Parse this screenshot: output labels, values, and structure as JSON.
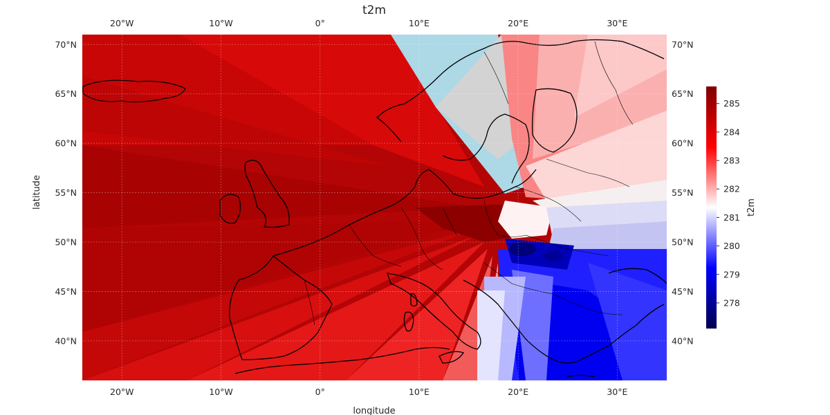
{
  "plot": {
    "title": "t2m",
    "xlabel": "longitude",
    "ylabel": "latitude",
    "colorbar_label": "t2m"
  },
  "axes": {
    "lon_range": [
      -24,
      35
    ],
    "lat_range": [
      36,
      71
    ],
    "lon_ticks": [
      {
        "value": -20,
        "label": "20°W"
      },
      {
        "value": -10,
        "label": "10°W"
      },
      {
        "value": 0,
        "label": "0°"
      },
      {
        "value": 10,
        "label": "10°E"
      },
      {
        "value": 20,
        "label": "20°E"
      },
      {
        "value": 30,
        "label": "30°E"
      }
    ],
    "lat_ticks": [
      {
        "value": 40,
        "label": "40°N"
      },
      {
        "value": 45,
        "label": "45°N"
      },
      {
        "value": 50,
        "label": "50°N"
      },
      {
        "value": 55,
        "label": "55°N"
      },
      {
        "value": 60,
        "label": "60°N"
      },
      {
        "value": 65,
        "label": "65°N"
      },
      {
        "value": 70,
        "label": "70°N"
      }
    ]
  },
  "colorbar": {
    "range": [
      277.1,
      285.6
    ],
    "ticks": [
      {
        "value": 278,
        "label": "278"
      },
      {
        "value": 279,
        "label": "279"
      },
      {
        "value": 280,
        "label": "280"
      },
      {
        "value": 281,
        "label": "281"
      },
      {
        "value": 282,
        "label": "282"
      },
      {
        "value": 283,
        "label": "283"
      },
      {
        "value": 284,
        "label": "284"
      },
      {
        "value": 285,
        "label": "285"
      }
    ],
    "colors": [
      "#00004c",
      "#0000ff",
      "#ffffff",
      "#ff0000",
      "#7f0000"
    ]
  },
  "missing_colors": {
    "light_blue": "#add8e6",
    "light_grey": "#d3d3d3"
  }
}
